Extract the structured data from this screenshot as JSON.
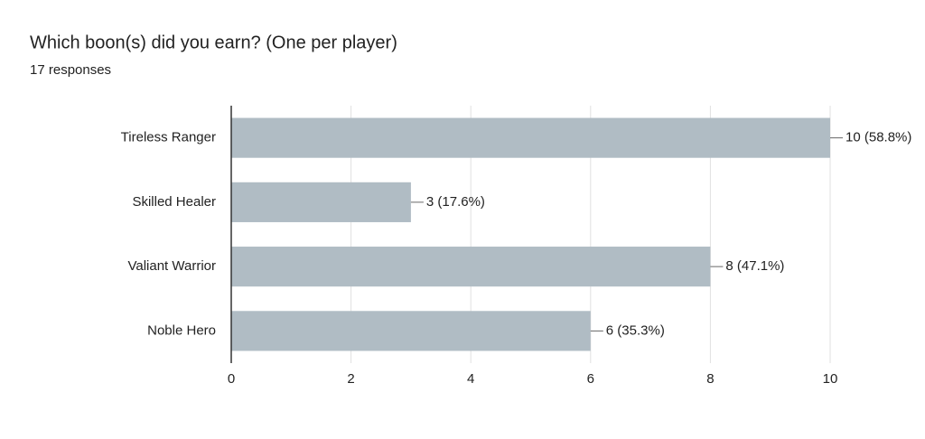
{
  "chart_data": {
    "type": "bar",
    "orientation": "horizontal",
    "title": "Which boon(s) did you earn? (One per player)",
    "subtitle": "17 responses",
    "categories": [
      "Tireless Ranger",
      "Skilled Healer",
      "Valiant Warrior",
      "Noble Hero"
    ],
    "values": [
      10,
      3,
      8,
      6
    ],
    "value_labels": [
      "10 (58.8%)",
      "3 (17.6%)",
      "8 (47.1%)",
      "6 (35.3%)"
    ],
    "color": "#b0bcc4",
    "xlim": [
      0,
      10
    ],
    "xticks": [
      0,
      2,
      4,
      6,
      8,
      10
    ],
    "grid": true
  }
}
